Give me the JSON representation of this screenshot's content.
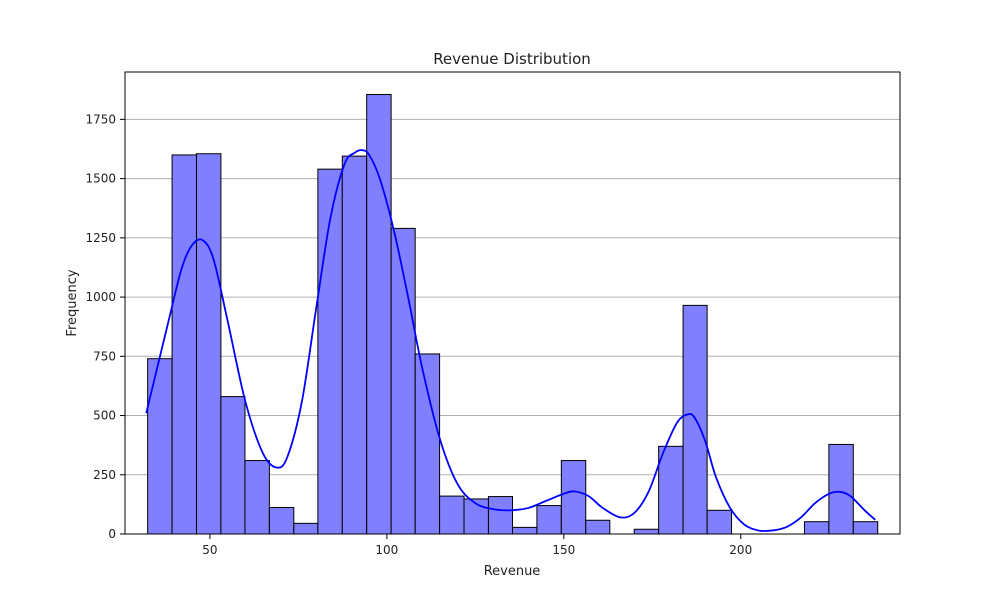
{
  "chart_data": {
    "type": "bar",
    "title": "Revenue Distribution",
    "xlabel": "Revenue",
    "ylabel": "Frequency",
    "xlim": [
      26,
      245
    ],
    "ylim": [
      0,
      1950
    ],
    "bin_edges": [
      32.4,
      39.3,
      46.2,
      53.1,
      59.9,
      66.8,
      73.7,
      80.5,
      87.4,
      94.3,
      101.2,
      108.0,
      114.9,
      121.8,
      128.7,
      135.5,
      142.4,
      149.3,
      156.2,
      163.0,
      169.9,
      176.8,
      183.7,
      190.5,
      197.4,
      204.3,
      211.2,
      218.0,
      224.9,
      231.8,
      238.7
    ],
    "counts": [
      740,
      1600,
      1605,
      580,
      310,
      112,
      45,
      1540,
      1595,
      1855,
      1290,
      760,
      160,
      148,
      158,
      28,
      120,
      310,
      58,
      0,
      20,
      370,
      965,
      100,
      0,
      0,
      0,
      52,
      378,
      52
    ],
    "kde": {
      "x": [
        32,
        38,
        42,
        45,
        48,
        51,
        55,
        60,
        65,
        69,
        72,
        76,
        80,
        84,
        88,
        91,
        93,
        95,
        98,
        102,
        106,
        110,
        115,
        120,
        125,
        130,
        135,
        140,
        145,
        150,
        153,
        157,
        161,
        166,
        170,
        174,
        178,
        182,
        185,
        187,
        190,
        193,
        197,
        201,
        205,
        209,
        213,
        217,
        221,
        225,
        228,
        231,
        235,
        238
      ],
      "y": [
        510,
        880,
        1120,
        1220,
        1240,
        1160,
        900,
        560,
        340,
        280,
        330,
        560,
        950,
        1330,
        1560,
        1610,
        1620,
        1600,
        1500,
        1280,
        1000,
        700,
        400,
        210,
        130,
        105,
        100,
        110,
        140,
        170,
        180,
        160,
        110,
        70,
        90,
        180,
        340,
        470,
        505,
        490,
        390,
        240,
        110,
        40,
        15,
        15,
        30,
        70,
        130,
        170,
        178,
        160,
        100,
        60
      ]
    },
    "x_ticks": [
      50,
      100,
      150,
      200
    ],
    "y_ticks": [
      0,
      250,
      500,
      750,
      1000,
      1250,
      1500,
      1750
    ],
    "grid": "y",
    "bar_color": "#8080ff",
    "bar_edge_color": "#000000",
    "kde_color": "#0000ff",
    "grid_color": "#b0b0b0"
  }
}
